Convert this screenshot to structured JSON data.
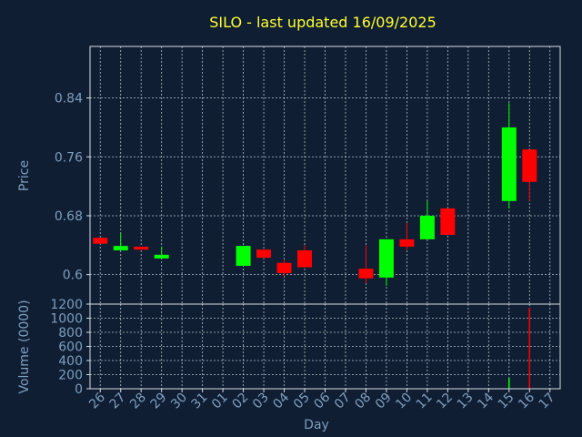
{
  "chart_data": {
    "type": "candlestick",
    "title": "SILO - last updated 16/09/2025",
    "xlabel": "Day",
    "price_panel": {
      "ylabel": "Price",
      "ylim": [
        0.56,
        0.91
      ],
      "yticks": [
        0.6,
        0.68,
        0.76,
        0.84
      ],
      "ytick_labels": [
        "0.6",
        "0.68",
        "0.76",
        "0.84"
      ],
      "grid": true
    },
    "volume_panel": {
      "ylabel": "Volume (0000)",
      "ylim": [
        0,
        1200
      ],
      "yticks": [
        0,
        200,
        400,
        600,
        800,
        1000,
        1200
      ],
      "ytick_labels": [
        "0",
        "200",
        "400",
        "600",
        "800",
        "1000",
        "1200"
      ],
      "grid": true
    },
    "x_tick_labels": [
      "26",
      "27",
      "28",
      "29",
      "30",
      "31",
      "01",
      "02",
      "03",
      "04",
      "05",
      "06",
      "07",
      "08",
      "09",
      "10",
      "11",
      "12",
      "13",
      "14",
      "15",
      "16",
      "17"
    ],
    "colors": {
      "background": "#0f1e33",
      "up": "#00ff00",
      "down": "#ff0000",
      "title": "#ffff33",
      "text": "#7f9fbf",
      "grid": "#d8dde4"
    },
    "candles": [
      {
        "day": "26",
        "open": 0.65,
        "high": 0.65,
        "low": 0.642,
        "close": 0.642,
        "volume": 0
      },
      {
        "day": "27",
        "open": 0.633,
        "high": 0.656,
        "low": 0.633,
        "close": 0.639,
        "volume": 0
      },
      {
        "day": "28",
        "open": 0.638,
        "high": 0.638,
        "low": 0.634,
        "close": 0.634,
        "volume": 0
      },
      {
        "day": "29",
        "open": 0.622,
        "high": 0.638,
        "low": 0.621,
        "close": 0.627,
        "volume": 0
      },
      {
        "day": "02",
        "open": 0.612,
        "high": 0.639,
        "low": 0.612,
        "close": 0.639,
        "volume": 0
      },
      {
        "day": "03",
        "open": 0.634,
        "high": 0.634,
        "low": 0.622,
        "close": 0.623,
        "volume": 5
      },
      {
        "day": "04",
        "open": 0.616,
        "high": 0.62,
        "low": 0.598,
        "close": 0.602,
        "volume": 0
      },
      {
        "day": "05",
        "open": 0.633,
        "high": 0.64,
        "low": 0.61,
        "close": 0.61,
        "volume": 0
      },
      {
        "day": "08",
        "open": 0.608,
        "high": 0.64,
        "low": 0.588,
        "close": 0.595,
        "volume": 0
      },
      {
        "day": "09",
        "open": 0.596,
        "high": 0.648,
        "low": 0.585,
        "close": 0.648,
        "volume": 0
      },
      {
        "day": "10",
        "open": 0.648,
        "high": 0.67,
        "low": 0.634,
        "close": 0.638,
        "volume": 0
      },
      {
        "day": "11",
        "open": 0.648,
        "high": 0.7,
        "low": 0.648,
        "close": 0.68,
        "volume": 0
      },
      {
        "day": "12",
        "open": 0.69,
        "high": 0.69,
        "low": 0.654,
        "close": 0.654,
        "volume": 0
      },
      {
        "day": "15",
        "open": 0.7,
        "high": 0.833,
        "low": 0.69,
        "close": 0.8,
        "volume": 150
      },
      {
        "day": "16",
        "open": 0.77,
        "high": 0.77,
        "low": 0.7,
        "close": 0.726,
        "volume": 1150
      }
    ]
  }
}
